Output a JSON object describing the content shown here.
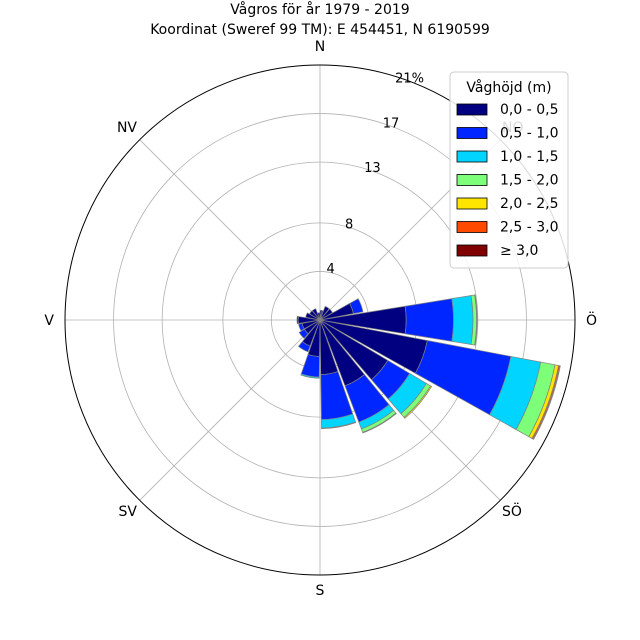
{
  "chart_data": {
    "type": "windrose",
    "title": "Vågros för år 1979 - 2019",
    "subtitle": "Koordinat (Sweref 99 TM): E 454451, N 6190599",
    "direction_labels": [
      "N",
      "Ö",
      "S",
      "V",
      "NV",
      "SÖ",
      "SV",
      "NO"
    ],
    "ring_values": [
      4,
      8,
      13,
      17,
      21
    ],
    "ring_labels": [
      "4",
      "8",
      "13",
      "17",
      "21%"
    ],
    "rmax": 21,
    "legend": {
      "title": "Våghöjd (m)",
      "placement": "top-right",
      "entries": [
        "0,0 - 0,5",
        "0,5 - 1,0",
        "1,0 - 1,5",
        "1,5 - 2,0",
        "2,0 - 2,5",
        "2,5 - 3,0",
        "≥ 3,0"
      ]
    },
    "colors": [
      "#000080",
      "#0026ff",
      "#00d4ff",
      "#7dff7a",
      "#ffe500",
      "#ff4a00",
      "#800000"
    ],
    "sectors": [
      {
        "angle": 0,
        "values": [
          0.6,
          0,
          0,
          0,
          0,
          0,
          0
        ]
      },
      {
        "angle": 10,
        "values": [
          0.8,
          0,
          0,
          0,
          0,
          0,
          0
        ]
      },
      {
        "angle": 20,
        "values": [
          0.7,
          0,
          0,
          0,
          0,
          0,
          0
        ]
      },
      {
        "angle": 30,
        "values": [
          1.2,
          0,
          0,
          0,
          0,
          0,
          0
        ]
      },
      {
        "angle": 50,
        "values": [
          1.2,
          0,
          0,
          0,
          0,
          0,
          0
        ]
      },
      {
        "angle": 70,
        "values": [
          2.8,
          0.8,
          0,
          0,
          0,
          0,
          0
        ]
      },
      {
        "angle": 90,
        "values": [
          7.1,
          3.9,
          1.6,
          0.3,
          0.05,
          0,
          0
        ]
      },
      {
        "angle": 110,
        "values": [
          9.0,
          7.0,
          2.5,
          1.2,
          0.3,
          0.1,
          0.05
        ]
      },
      {
        "angle": 130,
        "values": [
          6.5,
          2.1,
          1.6,
          0.4,
          0.1,
          0,
          0
        ]
      },
      {
        "angle": 150,
        "values": [
          5.8,
          3.2,
          0.6,
          0.3,
          0.05,
          0,
          0
        ]
      },
      {
        "angle": 170,
        "values": [
          4.5,
          3.7,
          0.7,
          0.05,
          0,
          0,
          0
        ]
      },
      {
        "angle": 190,
        "values": [
          3.0,
          1.7,
          0.1,
          0,
          0,
          0,
          0
        ]
      },
      {
        "angle": 210,
        "values": [
          2.3,
          0.5,
          0,
          0,
          0,
          0,
          0
        ]
      },
      {
        "angle": 230,
        "values": [
          1.5,
          0.5,
          0,
          0,
          0,
          0,
          0
        ]
      },
      {
        "angle": 250,
        "values": [
          1.5,
          0.3,
          0,
          0,
          0,
          0,
          0
        ]
      },
      {
        "angle": 270,
        "values": [
          1.8,
          0.1,
          0,
          0,
          0,
          0,
          0
        ]
      },
      {
        "angle": 290,
        "values": [
          1.2,
          0,
          0,
          0,
          0,
          0,
          0
        ]
      },
      {
        "angle": 310,
        "values": [
          1.0,
          0,
          0,
          0,
          0,
          0,
          0
        ]
      },
      {
        "angle": 330,
        "values": [
          1.0,
          0,
          0,
          0,
          0,
          0,
          0
        ]
      },
      {
        "angle": 350,
        "values": [
          0.6,
          0,
          0,
          0,
          0,
          0,
          0
        ]
      }
    ]
  }
}
